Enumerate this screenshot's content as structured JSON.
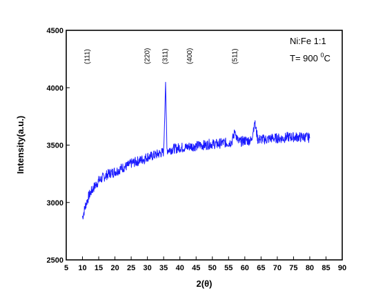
{
  "chart_data": {
    "type": "line",
    "xlabel": "2(θ)",
    "ylabel": "Intensity(a.u.)",
    "xlim": [
      5,
      90
    ],
    "ylim": [
      2500,
      4500
    ],
    "x_ticks": [
      5,
      10,
      15,
      20,
      25,
      30,
      35,
      40,
      45,
      50,
      55,
      60,
      65,
      70,
      75,
      80,
      85,
      90
    ],
    "y_ticks": [
      2500,
      3000,
      3500,
      4000,
      4500
    ],
    "legend_text": {
      "line1": "Ni:Fe 1:1",
      "line2_prefix": "T= 900 ",
      "line2_sup": "0",
      "line2_suffix": "C"
    },
    "peak_labels": [
      {
        "label": "(111)",
        "x": 11.5
      },
      {
        "label": "(220)",
        "x": 30.0
      },
      {
        "label": "(311)",
        "x": 35.5
      },
      {
        "label": "(400)",
        "x": 43.0
      },
      {
        "label": "(511)",
        "x": 57.0
      }
    ],
    "series": [
      {
        "color": "#1a1aff",
        "x": [
          10,
          11,
          12,
          13,
          14,
          15,
          16,
          17,
          18,
          19,
          20,
          21,
          22,
          23,
          24,
          25,
          26,
          27,
          28,
          29,
          30,
          31,
          32,
          33,
          34,
          35,
          35.6,
          36,
          37,
          38,
          39,
          40,
          41,
          42,
          43,
          44,
          45,
          46,
          47,
          48,
          49,
          50,
          51,
          52,
          53,
          54,
          55,
          56,
          57,
          58,
          59,
          60,
          61,
          62,
          63,
          64,
          65,
          66,
          67,
          68,
          69,
          70,
          71,
          72,
          73,
          74,
          75,
          76,
          77,
          78,
          79,
          80
        ],
        "y": [
          2870,
          2980,
          3060,
          3110,
          3150,
          3190,
          3210,
          3230,
          3250,
          3260,
          3270,
          3280,
          3300,
          3310,
          3320,
          3340,
          3350,
          3360,
          3370,
          3380,
          3400,
          3400,
          3410,
          3420,
          3430,
          3440,
          4050,
          3460,
          3460,
          3470,
          3470,
          3480,
          3480,
          3480,
          3490,
          3490,
          3490,
          3500,
          3500,
          3500,
          3510,
          3510,
          3510,
          3510,
          3520,
          3520,
          3520,
          3530,
          3620,
          3530,
          3530,
          3540,
          3540,
          3540,
          3700,
          3550,
          3550,
          3550,
          3550,
          3560,
          3560,
          3560,
          3560,
          3560,
          3570,
          3570,
          3570,
          3570,
          3570,
          3570,
          3570,
          3560
        ]
      }
    ]
  }
}
